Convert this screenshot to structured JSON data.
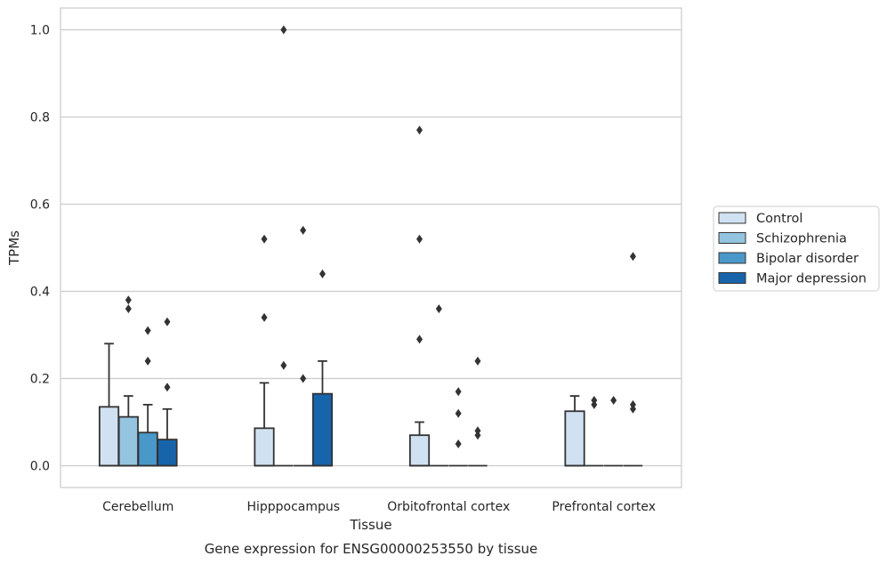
{
  "chart_data": {
    "type": "box",
    "caption": "Gene expression for ENSG00000253550 by tissue",
    "xlabel": "Tissue",
    "ylabel": "TPMs",
    "ylim": [
      -0.05,
      1.05
    ],
    "yticks": [
      0.0,
      0.2,
      0.4,
      0.6,
      0.8,
      1.0
    ],
    "ytick_labels": [
      "0.0",
      "0.2",
      "0.4",
      "0.6",
      "0.8",
      "1.0"
    ],
    "grid": "horizontal",
    "legend_placement": "right",
    "categories": [
      "Cerebellum",
      "Hipppocampus",
      "Orbitofrontal cortex",
      "Prefrontal cortex"
    ],
    "series": [
      {
        "name": "Control",
        "color": "#d0e1f2",
        "boxes": [
          {
            "q1": 0.0,
            "median": 0.0,
            "q3": 0.135,
            "whisker_low": 0.0,
            "whisker_high": 0.28,
            "outliers": []
          },
          {
            "q1": 0.0,
            "median": 0.0,
            "q3": 0.086,
            "whisker_low": 0.0,
            "whisker_high": 0.19,
            "outliers": [
              0.52,
              0.34
            ]
          },
          {
            "q1": 0.0,
            "median": 0.0,
            "q3": 0.07,
            "whisker_low": 0.0,
            "whisker_high": 0.1,
            "outliers": [
              0.77,
              0.52,
              0.29
            ]
          },
          {
            "q1": 0.0,
            "median": 0.0,
            "q3": 0.125,
            "whisker_low": 0.0,
            "whisker_high": 0.16,
            "outliers": []
          }
        ]
      },
      {
        "name": "Schizophrenia",
        "color": "#94c4df",
        "boxes": [
          {
            "q1": 0.0,
            "median": 0.0,
            "q3": 0.112,
            "whisker_low": 0.0,
            "whisker_high": 0.16,
            "outliers": [
              0.38,
              0.36
            ]
          },
          {
            "q1": 0.0,
            "median": 0.0,
            "q3": 0.0,
            "whisker_low": 0.0,
            "whisker_high": 0.0,
            "outliers": [
              1.0,
              0.23
            ]
          },
          {
            "q1": 0.0,
            "median": 0.0,
            "q3": 0.0,
            "whisker_low": 0.0,
            "whisker_high": 0.0,
            "outliers": [
              0.36
            ]
          },
          {
            "q1": 0.0,
            "median": 0.0,
            "q3": 0.0,
            "whisker_low": 0.0,
            "whisker_high": 0.0,
            "outliers": [
              0.15,
              0.14
            ]
          }
        ]
      },
      {
        "name": "Bipolar disorder",
        "color": "#4a98c9",
        "boxes": [
          {
            "q1": 0.0,
            "median": 0.0,
            "q3": 0.076,
            "whisker_low": 0.0,
            "whisker_high": 0.14,
            "outliers": [
              0.31,
              0.24
            ]
          },
          {
            "q1": 0.0,
            "median": 0.0,
            "q3": 0.0,
            "whisker_low": 0.0,
            "whisker_high": 0.0,
            "outliers": [
              0.54,
              0.2
            ]
          },
          {
            "q1": 0.0,
            "median": 0.0,
            "q3": 0.0,
            "whisker_low": 0.0,
            "whisker_high": 0.0,
            "outliers": [
              0.17,
              0.12,
              0.05
            ]
          },
          {
            "q1": 0.0,
            "median": 0.0,
            "q3": 0.0,
            "whisker_low": 0.0,
            "whisker_high": 0.0,
            "outliers": [
              0.15
            ]
          }
        ]
      },
      {
        "name": "Major depression",
        "color": "#1764ab",
        "boxes": [
          {
            "q1": 0.0,
            "median": 0.0,
            "q3": 0.06,
            "whisker_low": 0.0,
            "whisker_high": 0.13,
            "outliers": [
              0.33,
              0.18
            ]
          },
          {
            "q1": 0.0,
            "median": 0.0,
            "q3": 0.165,
            "whisker_low": 0.0,
            "whisker_high": 0.24,
            "outliers": [
              0.44
            ]
          },
          {
            "q1": 0.0,
            "median": 0.0,
            "q3": 0.0,
            "whisker_low": 0.0,
            "whisker_high": 0.0,
            "outliers": [
              0.24,
              0.08,
              0.07
            ]
          },
          {
            "q1": 0.0,
            "median": 0.0,
            "q3": 0.0,
            "whisker_low": 0.0,
            "whisker_high": 0.0,
            "outliers": [
              0.48,
              0.14,
              0.13
            ]
          }
        ]
      }
    ]
  }
}
